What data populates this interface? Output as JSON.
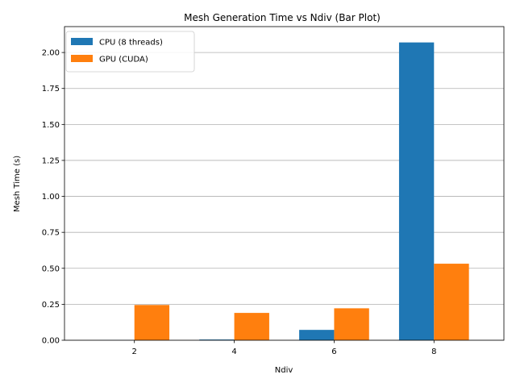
{
  "chart_data": {
    "type": "bar",
    "title": "Mesh Generation Time vs Ndiv (Bar Plot)",
    "xlabel": "Ndiv",
    "ylabel": "Mesh Time (s)",
    "categories": [
      "2",
      "4",
      "6",
      "8"
    ],
    "series": [
      {
        "name": "CPU (8 threads)",
        "color": "#1f77b4",
        "values": [
          0.001,
          0.005,
          0.072,
          2.07
        ]
      },
      {
        "name": "GPU (CUDA)",
        "color": "#ff7f0e",
        "values": [
          0.245,
          0.19,
          0.222,
          0.532
        ]
      }
    ],
    "ylim": [
      0,
      2.18
    ],
    "yticks": [
      "0.00",
      "0.25",
      "0.50",
      "0.75",
      "1.00",
      "1.25",
      "1.50",
      "1.75",
      "2.00"
    ],
    "grid": "y",
    "legend_position": "top-left"
  }
}
